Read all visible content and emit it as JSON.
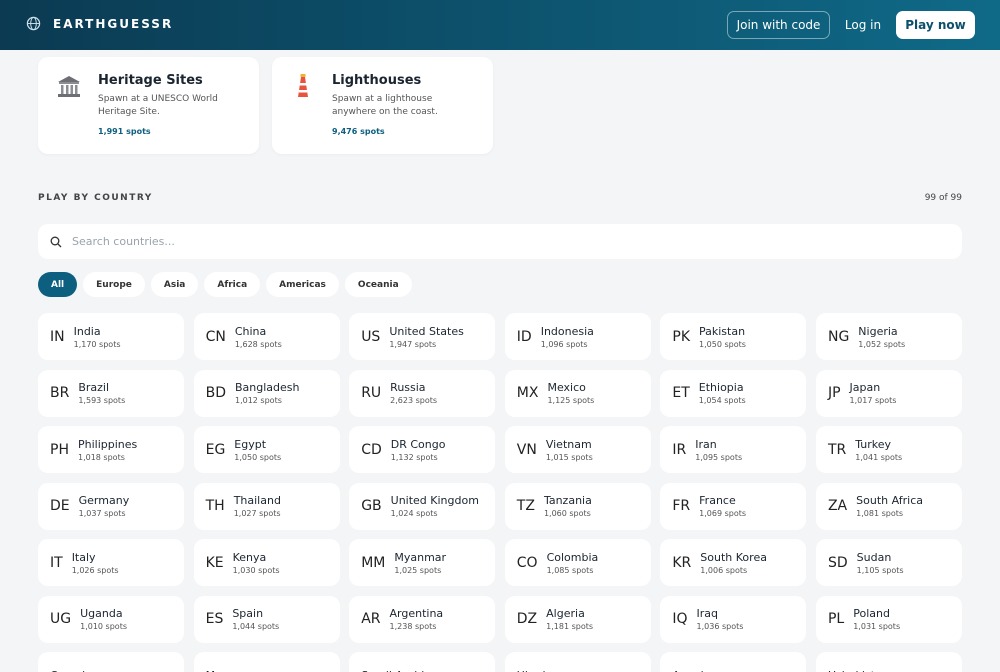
{
  "header": {
    "brand": "EARTHGUESSR",
    "join_button": "Join with code",
    "login_button": "Log in",
    "play_button": "Play now"
  },
  "modes": [
    {
      "title": "Heritage Sites",
      "description": "Spawn at a UNESCO World Heritage Site.",
      "spots": "1,991 spots"
    },
    {
      "title": "Lighthouses",
      "description": "Spawn at a lighthouse anywhere on the coast.",
      "spots": "9,476 spots"
    }
  ],
  "section": {
    "title": "PLAY BY COUNTRY",
    "count": "99 of 99",
    "search_placeholder": "Search countries...",
    "filters": [
      "All",
      "Europe",
      "Asia",
      "Africa",
      "Americas",
      "Oceania"
    ]
  },
  "countries": [
    {
      "code": "IN",
      "name": "India",
      "spots": "1,170 spots"
    },
    {
      "code": "CN",
      "name": "China",
      "spots": "1,628 spots"
    },
    {
      "code": "US",
      "name": "United States",
      "spots": "1,947 spots"
    },
    {
      "code": "ID",
      "name": "Indonesia",
      "spots": "1,096 spots"
    },
    {
      "code": "PK",
      "name": "Pakistan",
      "spots": "1,050 spots"
    },
    {
      "code": "NG",
      "name": "Nigeria",
      "spots": "1,052 spots"
    },
    {
      "code": "BR",
      "name": "Brazil",
      "spots": "1,593 spots"
    },
    {
      "code": "BD",
      "name": "Bangladesh",
      "spots": "1,012 spots"
    },
    {
      "code": "RU",
      "name": "Russia",
      "spots": "2,623 spots"
    },
    {
      "code": "MX",
      "name": "Mexico",
      "spots": "1,125 spots"
    },
    {
      "code": "ET",
      "name": "Ethiopia",
      "spots": "1,054 spots"
    },
    {
      "code": "JP",
      "name": "Japan",
      "spots": "1,017 spots"
    },
    {
      "code": "PH",
      "name": "Philippines",
      "spots": "1,018 spots"
    },
    {
      "code": "EG",
      "name": "Egypt",
      "spots": "1,050 spots"
    },
    {
      "code": "CD",
      "name": "DR Congo",
      "spots": "1,132 spots"
    },
    {
      "code": "VN",
      "name": "Vietnam",
      "spots": "1,015 spots"
    },
    {
      "code": "IR",
      "name": "Iran",
      "spots": "1,095 spots"
    },
    {
      "code": "TR",
      "name": "Turkey",
      "spots": "1,041 spots"
    },
    {
      "code": "DE",
      "name": "Germany",
      "spots": "1,037 spots"
    },
    {
      "code": "TH",
      "name": "Thailand",
      "spots": "1,027 spots"
    },
    {
      "code": "GB",
      "name": "United Kingdom",
      "spots": "1,024 spots"
    },
    {
      "code": "TZ",
      "name": "Tanzania",
      "spots": "1,060 spots"
    },
    {
      "code": "FR",
      "name": "France",
      "spots": "1,069 spots"
    },
    {
      "code": "ZA",
      "name": "South Africa",
      "spots": "1,081 spots"
    },
    {
      "code": "IT",
      "name": "Italy",
      "spots": "1,026 spots"
    },
    {
      "code": "KE",
      "name": "Kenya",
      "spots": "1,030 spots"
    },
    {
      "code": "MM",
      "name": "Myanmar",
      "spots": "1,025 spots"
    },
    {
      "code": "CO",
      "name": "Colombia",
      "spots": "1,085 spots"
    },
    {
      "code": "KR",
      "name": "South Korea",
      "spots": "1,006 spots"
    },
    {
      "code": "SD",
      "name": "Sudan",
      "spots": "1,105 spots"
    },
    {
      "code": "UG",
      "name": "Uganda",
      "spots": "1,010 spots"
    },
    {
      "code": "ES",
      "name": "Spain",
      "spots": "1,044 spots"
    },
    {
      "code": "AR",
      "name": "Argentina",
      "spots": "1,238 spots"
    },
    {
      "code": "DZ",
      "name": "Algeria",
      "spots": "1,181 spots"
    },
    {
      "code": "IQ",
      "name": "Iraq",
      "spots": "1,036 spots"
    },
    {
      "code": "PL",
      "name": "Poland",
      "spots": "1,031 spots"
    },
    {
      "name": "Canada"
    },
    {
      "name": "Morocco"
    },
    {
      "name": "Saudi Arabia"
    },
    {
      "name": "Ukraine"
    },
    {
      "name": "Angola"
    },
    {
      "name": "Uzbekistan"
    }
  ]
}
